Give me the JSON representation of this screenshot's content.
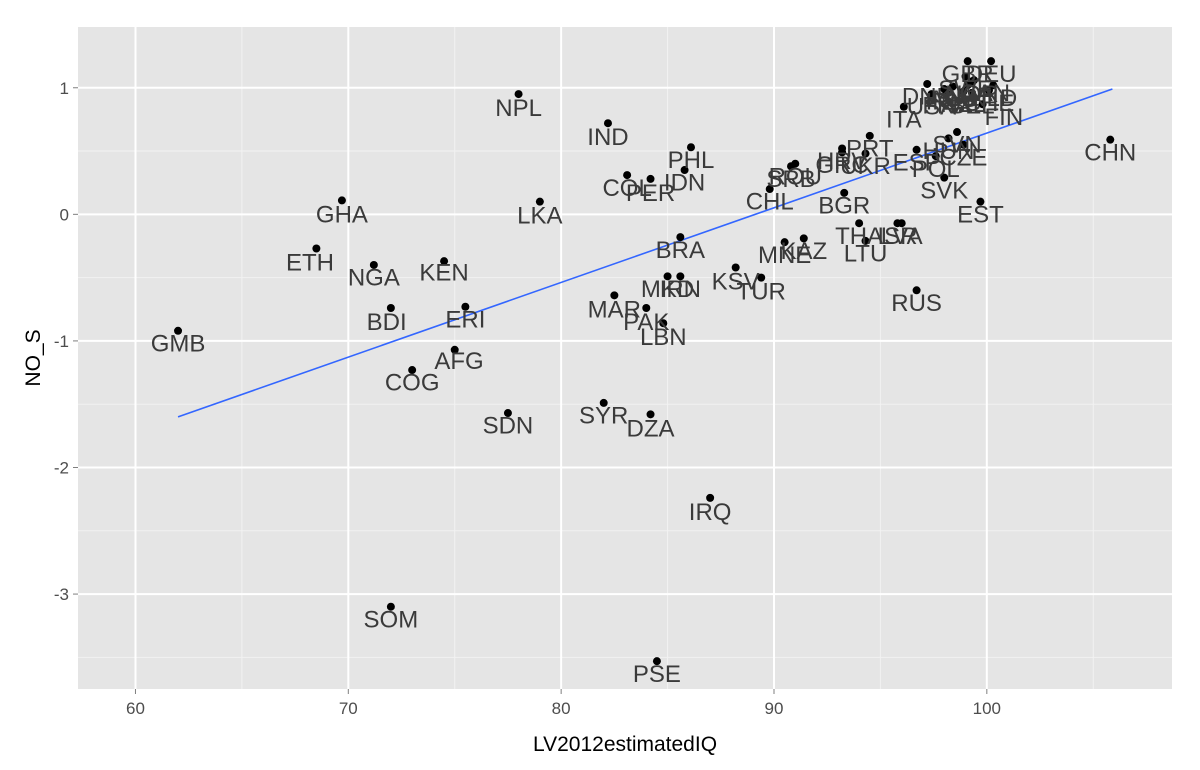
{
  "chart_data": {
    "type": "scatter",
    "title": "",
    "xlabel": "LV2012estimatedIQ",
    "ylabel": "NO_S",
    "xlim": [
      57.3,
      108.7
    ],
    "ylim": [
      -3.75,
      1.48
    ],
    "x_ticks": [
      60,
      70,
      80,
      90,
      100
    ],
    "y_ticks": [
      -3,
      -2,
      -1,
      0,
      1
    ],
    "x_tick_labels": [
      "60",
      "70",
      "80",
      "90",
      "100"
    ],
    "y_tick_labels": [
      "-3",
      "-2",
      "-1",
      "0",
      "1"
    ],
    "grid": true,
    "panel_color": "#e5e5e5",
    "point_color": "#000000",
    "label_color": "#3a3a3a",
    "trend_color": "#3366ff",
    "trend_line": {
      "x": [
        62.0,
        105.9
      ],
      "y": [
        -1.6,
        0.99
      ]
    },
    "points": [
      {
        "label": "GMB",
        "x": 62.0,
        "y": -0.92,
        "lx": 62.0,
        "ly": -1.02
      },
      {
        "label": "ETH",
        "x": 68.5,
        "y": -0.27,
        "lx": 68.2,
        "ly": -0.38
      },
      {
        "label": "GHA",
        "x": 69.7,
        "y": 0.11,
        "lx": 69.7,
        "ly": 0.0
      },
      {
        "label": "NGA",
        "x": 71.2,
        "y": -0.4,
        "lx": 71.2,
        "ly": -0.5
      },
      {
        "label": "BDI",
        "x": 72.0,
        "y": -0.74,
        "lx": 71.8,
        "ly": -0.85
      },
      {
        "label": "COG",
        "x": 73.0,
        "y": -1.23,
        "lx": 73.0,
        "ly": -1.33
      },
      {
        "label": "SOM",
        "x": 72.0,
        "y": -3.1,
        "lx": 72.0,
        "ly": -3.2
      },
      {
        "label": "KEN",
        "x": 74.5,
        "y": -0.37,
        "lx": 74.5,
        "ly": -0.46
      },
      {
        "label": "ERI",
        "x": 75.5,
        "y": -0.73,
        "lx": 75.5,
        "ly": -0.83
      },
      {
        "label": "AFG",
        "x": 75.0,
        "y": -1.07,
        "lx": 75.2,
        "ly": -1.16
      },
      {
        "label": "SDN",
        "x": 77.5,
        "y": -1.57,
        "lx": 77.5,
        "ly": -1.67
      },
      {
        "label": "NPL",
        "x": 78.0,
        "y": 0.95,
        "lx": 78.0,
        "ly": 0.84
      },
      {
        "label": "LKA",
        "x": 79.0,
        "y": 0.1,
        "lx": 79.0,
        "ly": -0.01
      },
      {
        "label": "IND",
        "x": 82.2,
        "y": 0.72,
        "lx": 82.2,
        "ly": 0.61
      },
      {
        "label": "COL",
        "x": 83.1,
        "y": 0.31,
        "lx": 83.1,
        "ly": 0.21
      },
      {
        "label": "PER",
        "x": 84.2,
        "y": 0.28,
        "lx": 84.2,
        "ly": 0.17
      },
      {
        "label": "IDN",
        "x": 85.8,
        "y": 0.35,
        "lx": 85.8,
        "ly": 0.25
      },
      {
        "label": "PHL",
        "x": 86.1,
        "y": 0.53,
        "lx": 86.1,
        "ly": 0.43
      },
      {
        "label": "MAR",
        "x": 82.5,
        "y": -0.64,
        "lx": 82.5,
        "ly": -0.75
      },
      {
        "label": "PAK",
        "x": 84.0,
        "y": -0.74,
        "lx": 84.0,
        "ly": -0.85
      },
      {
        "label": "LBN",
        "x": 84.8,
        "y": -0.86,
        "lx": 84.8,
        "ly": -0.97
      },
      {
        "label": "SYR",
        "x": 82.0,
        "y": -1.49,
        "lx": 82.0,
        "ly": -1.59
      },
      {
        "label": "DZA",
        "x": 84.2,
        "y": -1.58,
        "lx": 84.2,
        "ly": -1.69
      },
      {
        "label": "IRQ",
        "x": 87.0,
        "y": -2.24,
        "lx": 87.0,
        "ly": -2.35
      },
      {
        "label": "PSE",
        "x": 84.5,
        "y": -3.53,
        "lx": 84.5,
        "ly": -3.63
      },
      {
        "label": "BRA",
        "x": 85.6,
        "y": -0.18,
        "lx": 85.6,
        "ly": -0.28
      },
      {
        "label": "MKD",
        "x": 85.0,
        "y": -0.49,
        "lx": 85.0,
        "ly": -0.59
      },
      {
        "label": "IRN",
        "x": 85.6,
        "y": -0.49,
        "lx": 85.6,
        "ly": -0.59
      },
      {
        "label": "KSV",
        "x": 88.2,
        "y": -0.42,
        "lx": 88.2,
        "ly": -0.53
      },
      {
        "label": "TUR",
        "x": 89.4,
        "y": -0.5,
        "lx": 89.4,
        "ly": -0.61
      },
      {
        "label": "CHL",
        "x": 89.8,
        "y": 0.2,
        "lx": 89.8,
        "ly": 0.1
      },
      {
        "label": "ROU",
        "x": 91.0,
        "y": 0.4,
        "lx": 91.0,
        "ly": 0.3
      },
      {
        "label": "SRB",
        "x": 90.8,
        "y": 0.38,
        "lx": 90.8,
        "ly": 0.28
      },
      {
        "label": "MNE",
        "x": 90.5,
        "y": -0.22,
        "lx": 90.5,
        "ly": -0.32
      },
      {
        "label": "KAZ",
        "x": 91.4,
        "y": -0.19,
        "lx": 91.4,
        "ly": -0.29
      },
      {
        "label": "BGR",
        "x": 93.3,
        "y": 0.17,
        "lx": 93.3,
        "ly": 0.07
      },
      {
        "label": "GRC",
        "x": 93.2,
        "y": 0.49,
        "lx": 93.2,
        "ly": 0.39
      },
      {
        "label": "HRV",
        "x": 93.2,
        "y": 0.52,
        "lx": 93.2,
        "ly": 0.42
      },
      {
        "label": "PRT",
        "x": 94.5,
        "y": 0.62,
        "lx": 94.5,
        "ly": 0.52
      },
      {
        "label": "UKR",
        "x": 94.3,
        "y": 0.48,
        "lx": 94.3,
        "ly": 0.38
      },
      {
        "label": "THA",
        "x": 94.0,
        "y": -0.07,
        "lx": 94.0,
        "ly": -0.17
      },
      {
        "label": "LTU",
        "x": 94.3,
        "y": -0.21,
        "lx": 94.3,
        "ly": -0.31
      },
      {
        "label": "LVA",
        "x": 96.0,
        "y": -0.07,
        "lx": 96.0,
        "ly": -0.17
      },
      {
        "label": "ISR",
        "x": 95.8,
        "y": -0.07,
        "lx": 95.8,
        "ly": -0.17
      },
      {
        "label": "RUS",
        "x": 96.7,
        "y": -0.6,
        "lx": 96.7,
        "ly": -0.7
      },
      {
        "label": "ITA",
        "x": 96.1,
        "y": 0.85,
        "lx": 96.1,
        "ly": 0.75
      },
      {
        "label": "ESP",
        "x": 96.7,
        "y": 0.51,
        "lx": 96.7,
        "ly": 0.41
      },
      {
        "label": "HUN",
        "x": 98.2,
        "y": 0.6,
        "lx": 98.2,
        "ly": 0.5
      },
      {
        "label": "POL",
        "x": 97.6,
        "y": 0.46,
        "lx": 97.6,
        "ly": 0.36
      },
      {
        "label": "CZE",
        "x": 98.9,
        "y": 0.55,
        "lx": 98.9,
        "ly": 0.45
      },
      {
        "label": "SVN",
        "x": 98.6,
        "y": 0.65,
        "lx": 98.6,
        "ly": 0.55
      },
      {
        "label": "SVK",
        "x": 98.0,
        "y": 0.29,
        "lx": 98.0,
        "ly": 0.19
      },
      {
        "label": "EST",
        "x": 99.7,
        "y": 0.1,
        "lx": 99.7,
        "ly": 0.0
      },
      {
        "label": "FIN",
        "x": 99.8,
        "y": 0.87,
        "lx": 100.8,
        "ly": 0.77
      },
      {
        "label": "USA",
        "x": 97.4,
        "y": 0.95,
        "lx": 97.4,
        "ly": 0.85
      },
      {
        "label": "DNK",
        "x": 97.2,
        "y": 1.03,
        "lx": 97.2,
        "ly": 0.93
      },
      {
        "label": "IRL",
        "x": 98.0,
        "y": 0.99,
        "lx": 98.0,
        "ly": 0.89
      },
      {
        "label": "AUS",
        "x": 98.4,
        "y": 1.01,
        "lx": 98.4,
        "ly": 0.91
      },
      {
        "label": "GBR",
        "x": 99.1,
        "y": 1.21,
        "lx": 99.1,
        "ly": 1.11
      },
      {
        "label": "DEU",
        "x": 100.2,
        "y": 1.21,
        "lx": 100.2,
        "ly": 1.11
      },
      {
        "label": "SWE",
        "x": 99.0,
        "y": 1.09,
        "lx": 99.0,
        "ly": 0.99
      },
      {
        "label": "NOR",
        "x": 99.3,
        "y": 1.05,
        "lx": 99.3,
        "ly": 0.95
      },
      {
        "label": "AUT",
        "x": 99.1,
        "y": 1.02,
        "lx": 99.1,
        "ly": 0.92
      },
      {
        "label": "NLD",
        "x": 100.3,
        "y": 1.02,
        "lx": 100.3,
        "ly": 0.92
      },
      {
        "label": "CHE",
        "x": 100.1,
        "y": 0.98,
        "lx": 100.1,
        "ly": 0.88
      },
      {
        "label": "NZL",
        "x": 98.9,
        "y": 0.97,
        "lx": 98.9,
        "ly": 0.87
      },
      {
        "label": "CAN",
        "x": 99.4,
        "y": 1.06,
        "lx": 99.9,
        "ly": 0.96
      },
      {
        "label": "BEL",
        "x": 99.3,
        "y": 0.96,
        "lx": 99.3,
        "ly": 0.86
      },
      {
        "label": "FRA",
        "x": 98.1,
        "y": 0.96,
        "lx": 98.1,
        "ly": 0.86
      },
      {
        "label": "CHN",
        "x": 105.8,
        "y": 0.59,
        "lx": 105.8,
        "ly": 0.49
      }
    ]
  }
}
